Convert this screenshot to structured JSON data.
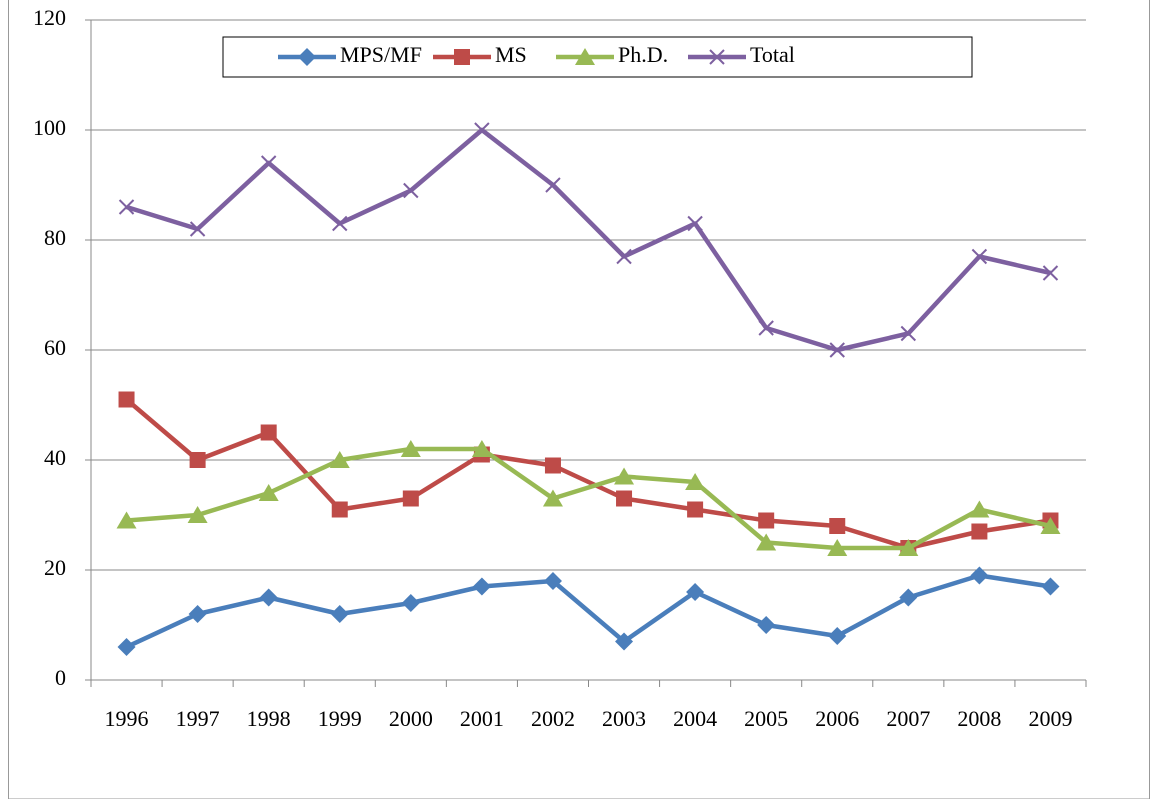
{
  "chart_data": {
    "type": "line",
    "categories": [
      "1996",
      "1997",
      "1998",
      "1999",
      "2000",
      "2001",
      "2002",
      "2003",
      "2004",
      "2005",
      "2006",
      "2007",
      "2008",
      "2009"
    ],
    "series": [
      {
        "name": "MPS/MF",
        "color": "#4a7ebb",
        "marker": "diamond",
        "values": [
          6,
          12,
          15,
          12,
          14,
          17,
          18,
          7,
          16,
          10,
          8,
          15,
          19,
          17
        ]
      },
      {
        "name": "MS",
        "color": "#be4b48",
        "marker": "square",
        "values": [
          51,
          40,
          45,
          31,
          33,
          41,
          39,
          33,
          31,
          29,
          28,
          24,
          27,
          29
        ]
      },
      {
        "name": "Ph.D.",
        "color": "#98b954",
        "marker": "triangle",
        "values": [
          29,
          30,
          34,
          40,
          42,
          42,
          33,
          37,
          36,
          25,
          24,
          24,
          31,
          28
        ]
      },
      {
        "name": "Total",
        "color": "#7d60a0",
        "marker": "x",
        "values": [
          86,
          82,
          94,
          83,
          89,
          100,
          90,
          77,
          83,
          64,
          60,
          63,
          77,
          74
        ]
      }
    ],
    "ylim": [
      0,
      120
    ],
    "yticks": [
      0,
      20,
      40,
      60,
      80,
      100,
      120
    ],
    "grid": true,
    "legend": "top"
  }
}
